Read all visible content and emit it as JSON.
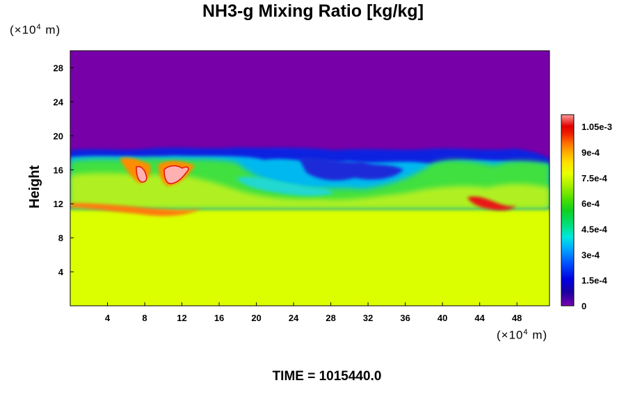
{
  "chart_data": {
    "type": "heatmap",
    "title": "NH3-g Mixing Ratio [kg/kg]",
    "xlabel": "",
    "ylabel": "Height",
    "x_unit_prefix": "(×10",
    "x_unit_exp": "4",
    "x_unit_suffix": " m)",
    "y_unit_prefix": "(×10",
    "y_unit_exp": "4",
    "y_unit_suffix": " m)",
    "xlim": [
      0,
      51.5
    ],
    "ylim": [
      0,
      30
    ],
    "x_ticks": [
      "4",
      "8",
      "12",
      "16",
      "20",
      "24",
      "28",
      "32",
      "36",
      "40",
      "44",
      "48"
    ],
    "y_ticks": [
      "4",
      "8",
      "12",
      "16",
      "20",
      "24",
      "28"
    ],
    "x_tick_values": [
      4,
      8,
      12,
      16,
      20,
      24,
      28,
      32,
      36,
      40,
      44,
      48
    ],
    "y_tick_values": [
      4,
      8,
      12,
      16,
      20,
      24,
      28
    ],
    "colorbar_labels": [
      "0",
      "1.5e-4",
      "3e-4",
      "4.5e-4",
      "6e-4",
      "7.5e-4",
      "9e-4",
      "1.05e-3"
    ],
    "colorbar_values": [
      0,
      0.00015,
      0.0003,
      0.00045,
      0.0006,
      0.00075,
      0.0009,
      0.00105
    ],
    "colorbar_range": [
      0,
      0.00112
    ],
    "field_summary": {
      "lower_layer_value": 0.00078,
      "upper_layer_value": 0,
      "mixing_zone_height_range": [
        11,
        18.5
      ],
      "peak_value": 0.0011,
      "peak_locations_x": [
        7.5,
        11.5
      ]
    },
    "colors": {
      "low": "#7700aa",
      "lower_layer": "#ddff00",
      "peak": "#ff9f9f"
    }
  },
  "footer": {
    "time_label": "TIME = 1015440.0"
  }
}
